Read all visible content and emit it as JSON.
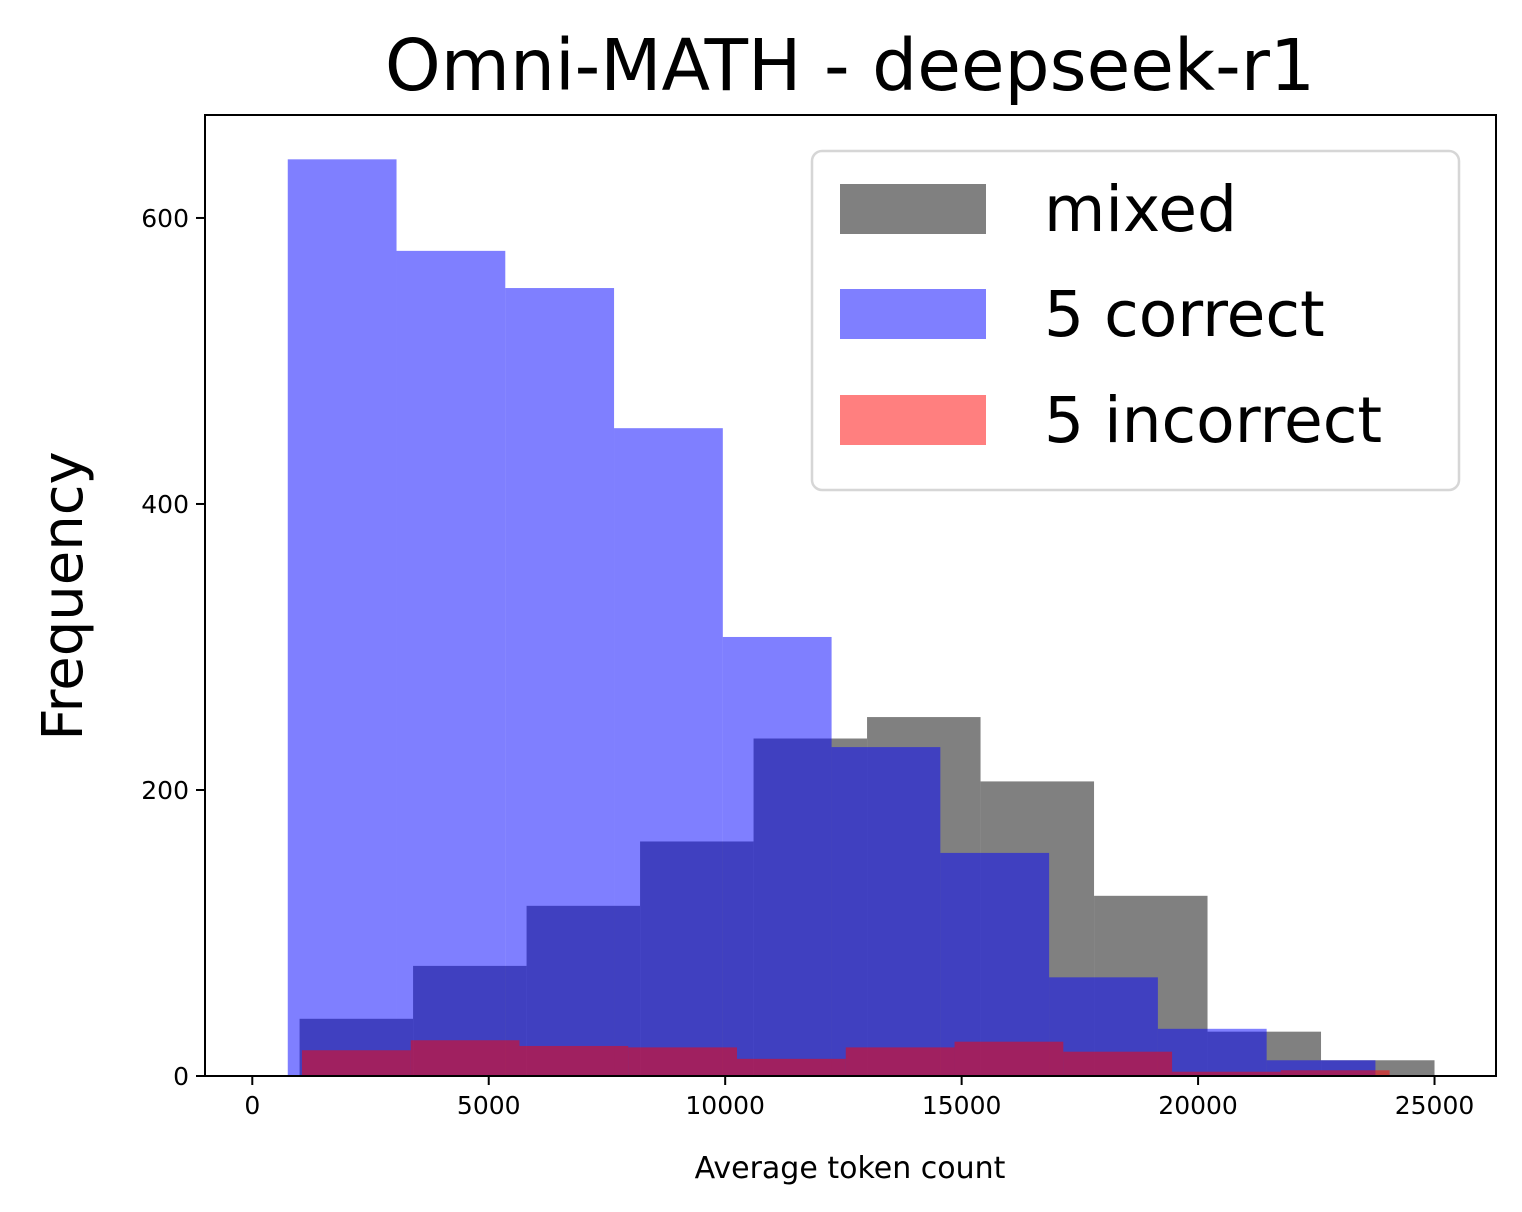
{
  "chart_data": {
    "type": "histogram",
    "title": "Omni-MATH - deepseek-r1",
    "xlabel": "Average token count",
    "ylabel": "Frequency",
    "xlim": [
      -1000,
      26300
    ],
    "ylim": [
      0,
      672
    ],
    "xticks": [
      0,
      5000,
      10000,
      15000,
      20000,
      25000
    ],
    "yticks": [
      0,
      200,
      400,
      600
    ],
    "grid": false,
    "legend_position": "top-right",
    "series": [
      {
        "name": "mixed",
        "color": "#808080",
        "opacity": 1.0,
        "bins": [
          [
            1000,
            3400,
            40
          ],
          [
            3400,
            5800,
            77
          ],
          [
            5800,
            8200,
            119
          ],
          [
            8200,
            10600,
            164
          ],
          [
            10600,
            13000,
            236
          ],
          [
            13000,
            15400,
            251
          ],
          [
            15400,
            17800,
            206
          ],
          [
            17800,
            20200,
            126
          ],
          [
            20200,
            22600,
            31
          ],
          [
            22600,
            25000,
            11
          ]
        ]
      },
      {
        "name": "5 correct",
        "color": "#0000ff",
        "opacity": 0.5,
        "bins": [
          [
            750,
            3050,
            641
          ],
          [
            3050,
            5350,
            577
          ],
          [
            5350,
            7650,
            551
          ],
          [
            7650,
            9950,
            453
          ],
          [
            9950,
            12250,
            307
          ],
          [
            12250,
            14550,
            230
          ],
          [
            14550,
            16850,
            156
          ],
          [
            16850,
            19150,
            69
          ],
          [
            19150,
            21450,
            33
          ],
          [
            21450,
            23750,
            11
          ]
        ]
      },
      {
        "name": "5 incorrect",
        "color": "#ff0000",
        "opacity": 0.5,
        "bins": [
          [
            1050,
            3350,
            18
          ],
          [
            3350,
            5650,
            25
          ],
          [
            5650,
            7950,
            21
          ],
          [
            7950,
            10250,
            20
          ],
          [
            10250,
            12550,
            12
          ],
          [
            12550,
            14850,
            20
          ],
          [
            14850,
            17150,
            24
          ],
          [
            17150,
            19450,
            17
          ],
          [
            19450,
            21750,
            3
          ],
          [
            21750,
            24050,
            4
          ]
        ]
      }
    ]
  }
}
